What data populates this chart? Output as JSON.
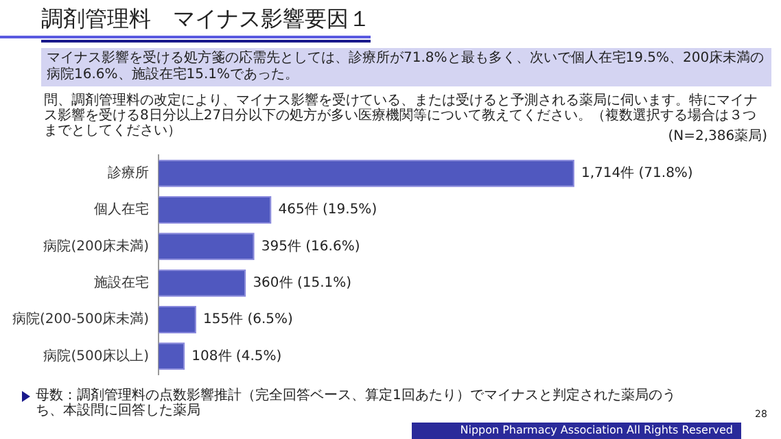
{
  "chart_data": {
    "type": "bar",
    "orientation": "horizontal",
    "title": "調剤管理料　マイナス影響要因１",
    "subtitle": "マイナス影響を受ける処方箋の応需先としては、診療所が71.8%と最も多く、次いで個人在宅19.5%、200床未満の病院16.6%、施設在宅15.1%であった。",
    "categories": [
      "診療所",
      "個人在宅",
      "病院(200床未満)",
      "施設在宅",
      "病院(200-500床未満)",
      "病院(500床以上)"
    ],
    "values": [
      1714,
      465,
      395,
      360,
      155,
      108
    ],
    "value_labels": [
      "1,714件 (71.8%)",
      "465件 (19.5%)",
      "395件 (16.6%)",
      "360件 (15.1%)",
      "155件 (6.5%)",
      "108件 (4.5%)"
    ],
    "color": "#5058bf",
    "annotations": [
      "問、調剤管理料の改定により、マイナス影響を受けている、または受けると予測される薬局に伺います。特にマイナス影響を受ける8日分以上27日分以下の処方が多い医療機関等について教えてください。（複数選択する場合は３つまでとしてください）",
      "(N=2,386薬局)",
      "母数：調剤管理料の点数影響推計（完全回答ベース、算定1回あたり）でマイナスと判定された薬局のうち、本設問に回答した薬局",
      "Nippon Pharmacy Association All Rights Reserved",
      "28"
    ]
  }
}
